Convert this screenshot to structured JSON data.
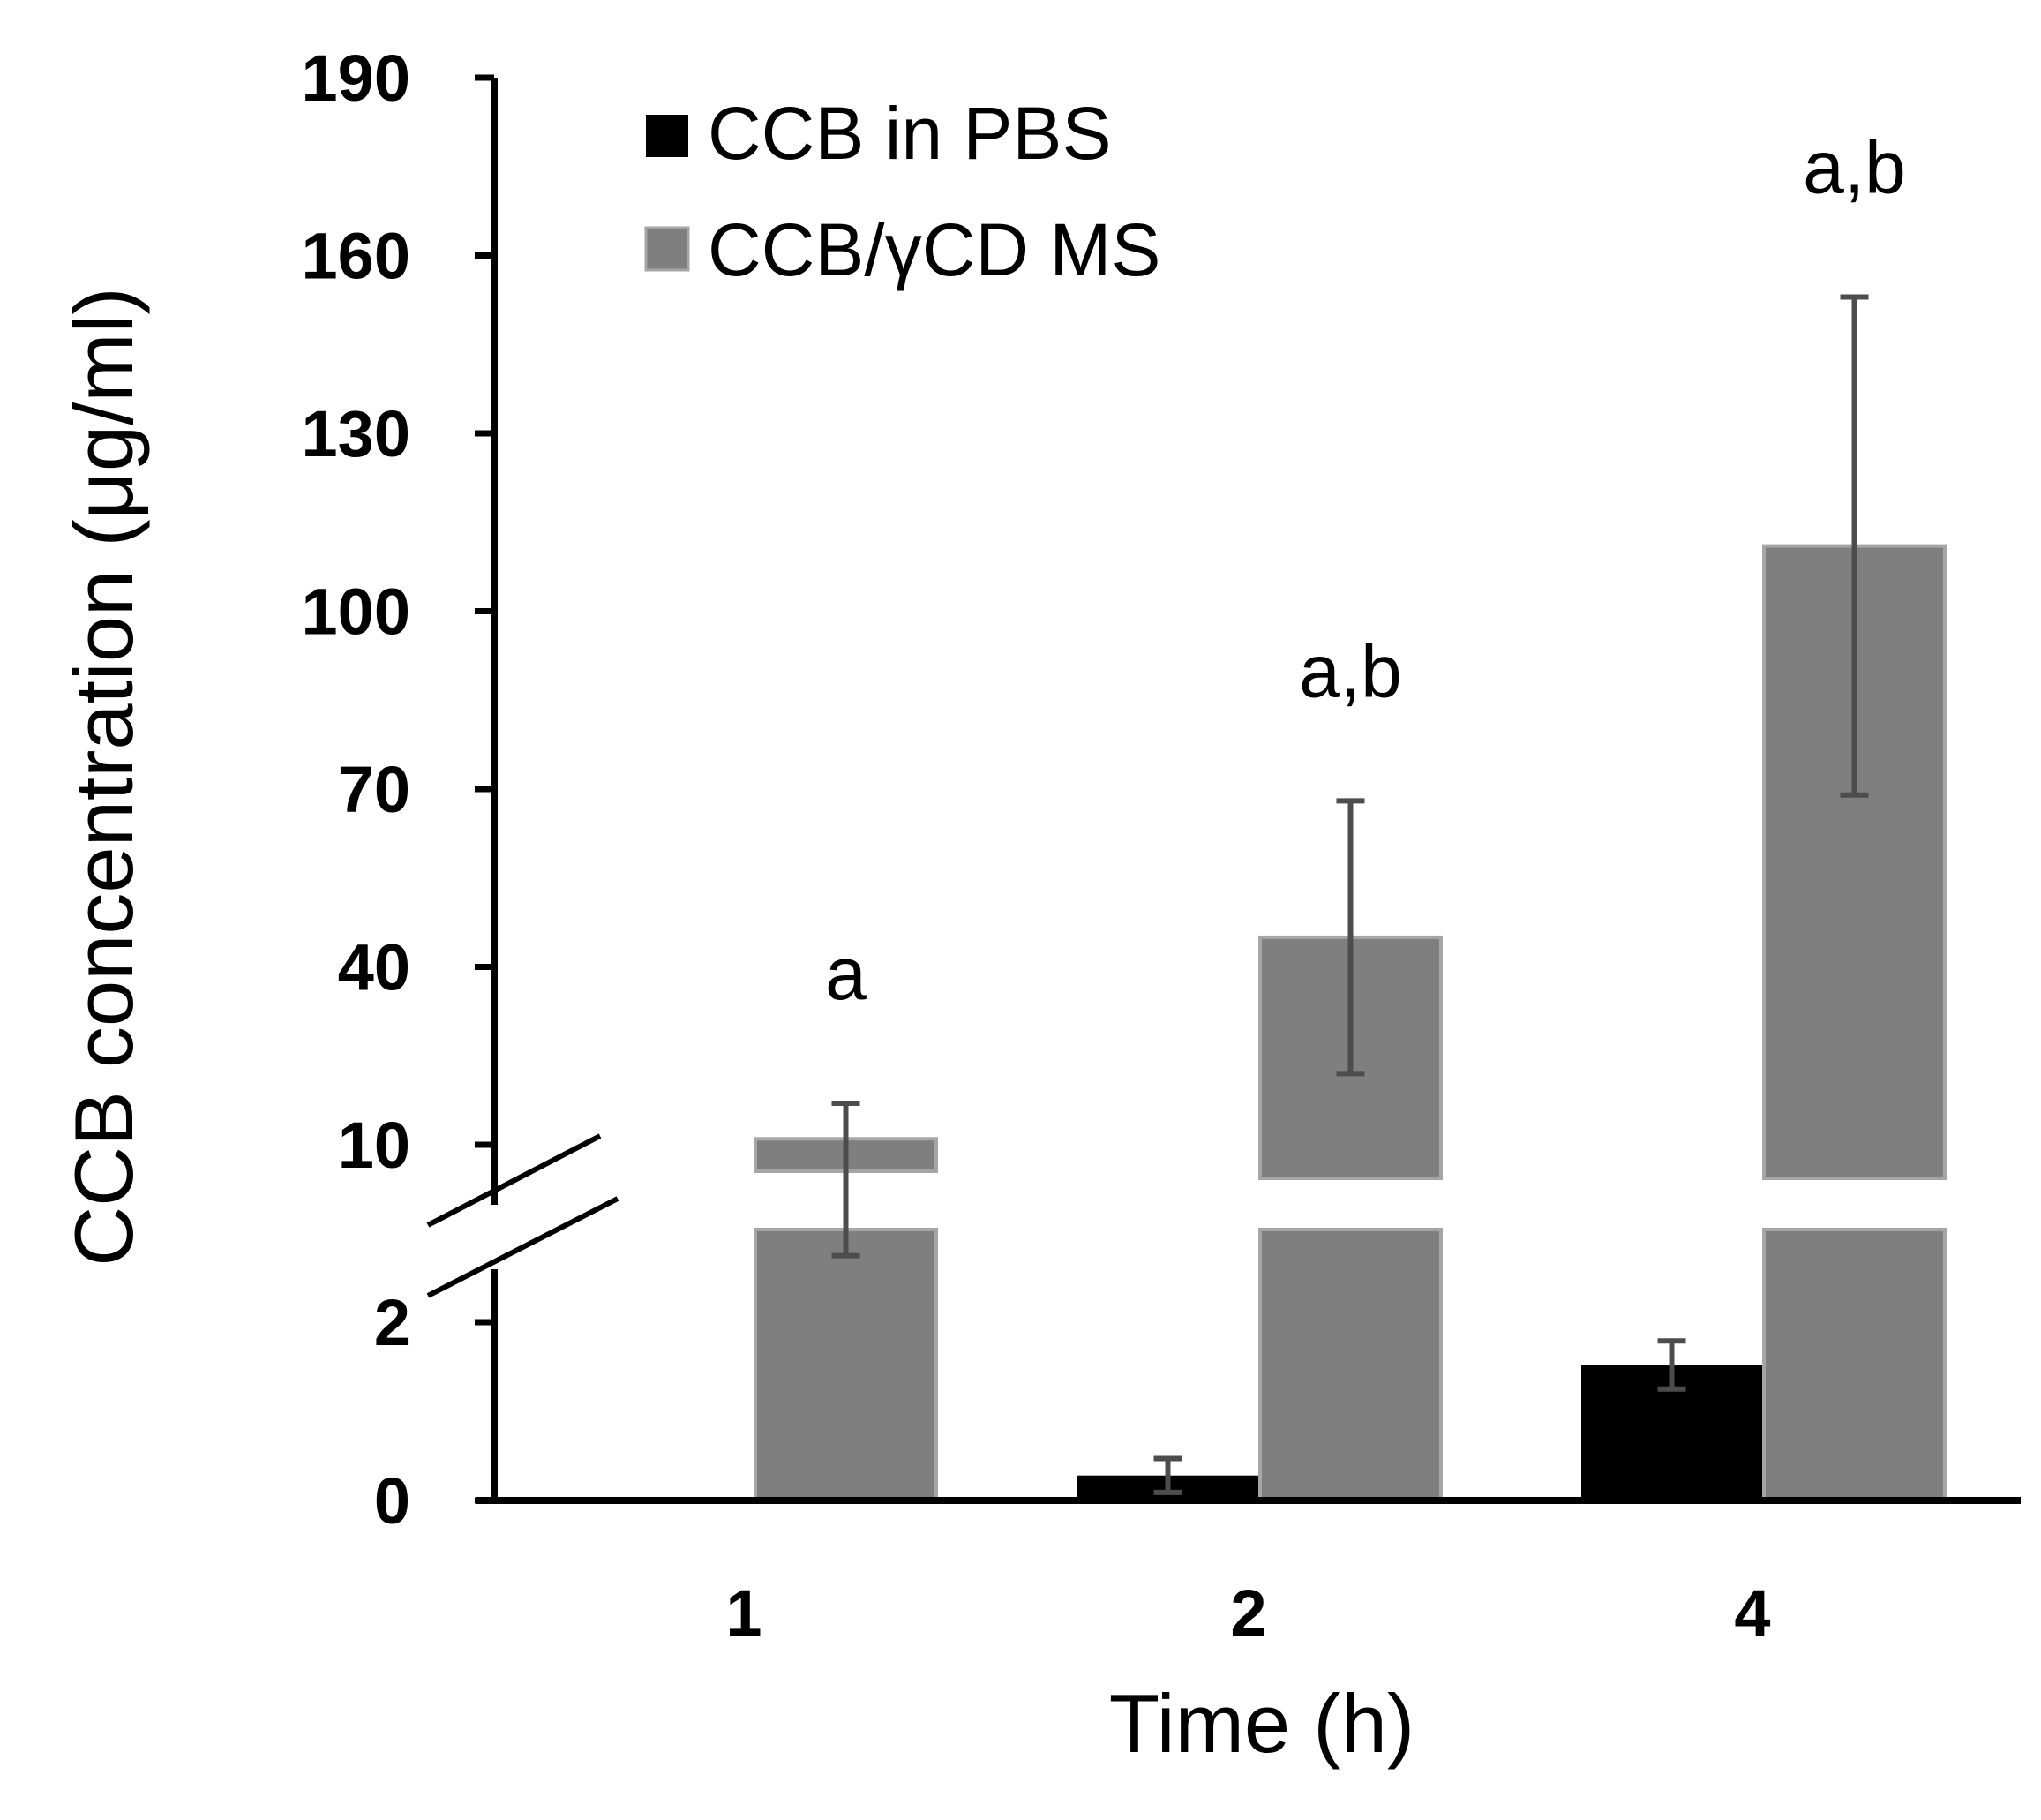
{
  "chart_data": {
    "type": "bar",
    "title": "",
    "xlabel": "Time (h)",
    "ylabel": "CCB concentration (μg/ml)",
    "categories": [
      "1",
      "2",
      "4"
    ],
    "y_axis_break": true,
    "y_ticks": [
      "190",
      "160",
      "130",
      "100",
      "70",
      "40",
      "10",
      "2",
      "0"
    ],
    "lower_segment": {
      "ylim": [
        0,
        2
      ],
      "ticks": [
        0,
        2
      ]
    },
    "upper_segment": {
      "ylim": [
        10,
        190
      ],
      "ticks": [
        10,
        40,
        70,
        100,
        130,
        160,
        190
      ]
    },
    "series": [
      {
        "name": "CCB in PBS",
        "color": "#000000",
        "values": [
          0,
          0.28,
          1.52
        ],
        "errors": [
          0,
          0.19,
          0.27
        ]
      },
      {
        "name": "CCB/γCD MS",
        "color": "#7f7f7f",
        "values": [
          11,
          45,
          111
        ],
        "errors": [
          6,
          23,
          42
        ]
      }
    ],
    "annotations": [
      {
        "category": "1",
        "text": "a"
      },
      {
        "category": "2",
        "text": "a,b"
      },
      {
        "category": "4",
        "text": "a,b"
      }
    ],
    "legend_position": "top-left",
    "grid": false,
    "error_bar_color": "#4d4d4d"
  }
}
